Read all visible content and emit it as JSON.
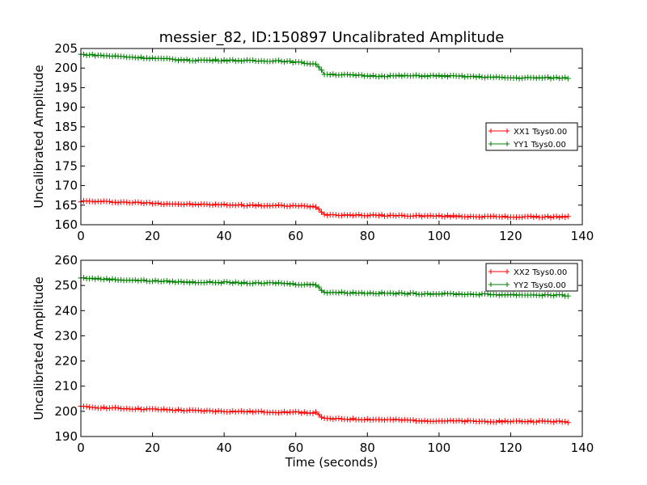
{
  "chart_data": [
    {
      "type": "line",
      "title": "messier_82, ID:150897 Uncalibrated Amplitude",
      "xlabel": "",
      "ylabel": "Uncalibrated Amplitude",
      "xlim": [
        0,
        140
      ],
      "ylim": [
        160,
        205
      ],
      "xticks": [
        0,
        20,
        40,
        60,
        80,
        100,
        120,
        140
      ],
      "yticks": [
        160,
        165,
        170,
        175,
        180,
        185,
        190,
        195,
        200,
        205
      ],
      "legend_position": "center-right",
      "marker": "+",
      "series": [
        {
          "name": "XX1 Tsys0.00",
          "color": "#ff0000",
          "x": [
            0,
            10,
            20,
            30,
            40,
            50,
            60,
            66,
            67,
            68,
            80,
            90,
            100,
            110,
            120,
            130,
            136
          ],
          "values": [
            166.0,
            165.8,
            165.5,
            165.2,
            165.1,
            164.9,
            164.8,
            164.6,
            163.5,
            162.6,
            162.4,
            162.3,
            162.2,
            162.1,
            162.0,
            162.0,
            162.0
          ]
        },
        {
          "name": "YY1 Tsys0.00",
          "color": "#008000",
          "x": [
            0,
            10,
            20,
            30,
            40,
            50,
            55,
            60,
            66,
            67,
            68,
            80,
            90,
            100,
            110,
            120,
            130,
            136
          ],
          "values": [
            203.5,
            203.0,
            202.5,
            202.0,
            202.0,
            201.8,
            201.9,
            201.5,
            201.0,
            199.5,
            198.5,
            198.0,
            198.0,
            198.0,
            197.8,
            197.5,
            197.5,
            197.5
          ]
        }
      ]
    },
    {
      "type": "line",
      "title": "",
      "xlabel": "Time (seconds)",
      "ylabel": "Uncalibrated Amplitude",
      "xlim": [
        0,
        140
      ],
      "ylim": [
        190,
        260
      ],
      "xticks": [
        0,
        20,
        40,
        60,
        80,
        100,
        120,
        140
      ],
      "yticks": [
        190,
        200,
        210,
        220,
        230,
        240,
        250,
        260
      ],
      "legend_position": "top-right",
      "marker": "+",
      "series": [
        {
          "name": "XX2 Tsys0.00",
          "color": "#ff0000",
          "x": [
            0,
            10,
            20,
            30,
            40,
            50,
            60,
            66,
            67,
            68,
            80,
            90,
            100,
            110,
            120,
            130,
            136
          ],
          "values": [
            201.8,
            201.2,
            200.8,
            200.3,
            200.0,
            199.8,
            199.6,
            199.4,
            198.0,
            197.0,
            196.8,
            196.5,
            196.2,
            196.0,
            196.0,
            196.0,
            195.8
          ]
        },
        {
          "name": "YY2 Tsys0.00",
          "color": "#008000",
          "x": [
            0,
            10,
            20,
            30,
            40,
            50,
            55,
            60,
            66,
            67,
            68,
            80,
            90,
            100,
            110,
            120,
            130,
            136
          ],
          "values": [
            253.0,
            252.3,
            251.8,
            251.3,
            251.2,
            250.8,
            251.0,
            250.5,
            250.2,
            248.5,
            247.3,
            247.0,
            246.8,
            246.7,
            246.5,
            246.3,
            246.2,
            246.0
          ]
        }
      ]
    }
  ]
}
